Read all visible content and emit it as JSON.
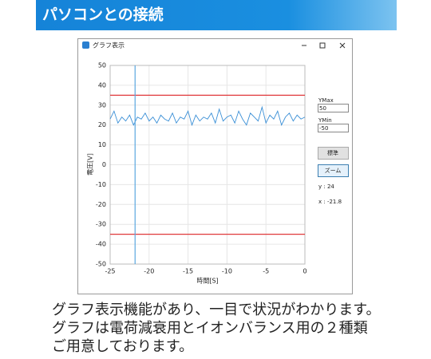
{
  "header": {
    "title": "パソコンとの接続"
  },
  "window": {
    "title": "グラフ表示",
    "ymax_label": "YMax",
    "ymin_label": "YMin",
    "buttons": [
      "標準",
      "ズーム"
    ]
  },
  "chart_data": {
    "type": "line",
    "x_label": "時間[S]",
    "y_label": "電圧[V]",
    "x": [
      -25,
      -24.5,
      -24,
      -23.5,
      -23,
      -22.5,
      -22,
      -21.5,
      -21,
      -20.5,
      -20,
      -19.5,
      -19,
      -18.5,
      -18,
      -17.5,
      -17,
      -16.5,
      -16,
      -15.5,
      -15,
      -14.5,
      -14,
      -13.5,
      -13,
      -12.5,
      -12,
      -11.5,
      -11,
      -10.5,
      -10,
      -9.5,
      -9,
      -8.5,
      -8,
      -7.5,
      -7,
      -6.5,
      -6,
      -5.5,
      -5,
      -4.5,
      -4,
      -3.5,
      -3,
      -2.5,
      -2,
      -1.5,
      -1,
      -0.5,
      0
    ],
    "values": [
      23,
      27,
      21,
      24,
      22,
      25,
      20,
      24,
      23,
      26,
      22,
      24,
      21,
      25,
      23,
      22,
      26,
      21,
      24,
      23,
      27,
      20,
      25,
      22,
      24,
      23,
      26,
      21,
      28,
      22,
      24,
      25,
      21,
      27,
      23,
      20,
      26,
      24,
      22,
      29,
      21,
      25,
      23,
      27,
      20,
      24,
      26,
      22,
      25,
      23,
      24
    ],
    "color": "#3a8fd6",
    "xlim": [
      -25,
      0
    ],
    "ylim": [
      -50,
      50
    ],
    "xticks": [
      -25,
      -20,
      -15,
      -10,
      -5,
      0
    ],
    "yticks": [
      -50,
      -40,
      -30,
      -20,
      -10,
      0,
      10,
      20,
      30,
      40,
      50
    ],
    "grid": true,
    "reference_lines": [
      35,
      -35
    ],
    "reference_color": "#e0393b",
    "cursor": {
      "x": -21.8,
      "y": 24
    },
    "cursor_color": "#5aa7e0",
    "readout_labels": {
      "y": "y : ",
      "x": "x : "
    }
  },
  "caption": [
    "グラフ表示機能があり、一目で状況がわかります。",
    "グラフは電荷減衰用とイオンバランス用の２種類",
    "ご用意しております。"
  ]
}
